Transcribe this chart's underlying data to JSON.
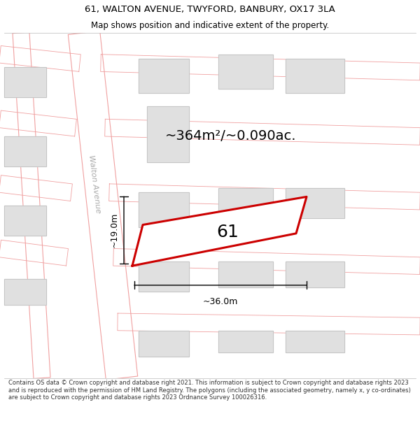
{
  "title": "61, WALTON AVENUE, TWYFORD, BANBURY, OX17 3LA",
  "subtitle": "Map shows position and indicative extent of the property.",
  "footer": "Contains OS data © Crown copyright and database right 2021. This information is subject to Crown copyright and database rights 2023 and is reproduced with the permission of HM Land Registry. The polygons (including the associated geometry, namely x, y co-ordinates) are subject to Crown copyright and database rights 2023 Ordnance Survey 100026316.",
  "area_label": "~364m²/~0.090ac.",
  "width_label": "~36.0m",
  "height_label": "~19.0m",
  "property_number": "61",
  "street_label": "Walton Avenue",
  "bg_color": "#ffffff",
  "map_bg": "#ffffff",
  "road_color": "#ffffff",
  "road_outline": "#f0a0a0",
  "building_fill": "#e0e0e0",
  "building_outline": "#c0c0c0",
  "highlight_fill": "#ffffff",
  "highlight_outline": "#cc0000",
  "dim_color": "#000000",
  "title_color": "#000000",
  "footer_color": "#333333",
  "title_fontsize": 9.5,
  "subtitle_fontsize": 8.5,
  "footer_fontsize": 6.0,
  "area_fontsize": 14,
  "dim_fontsize": 9,
  "street_fontsize": 8,
  "prop_num_fontsize": 18
}
